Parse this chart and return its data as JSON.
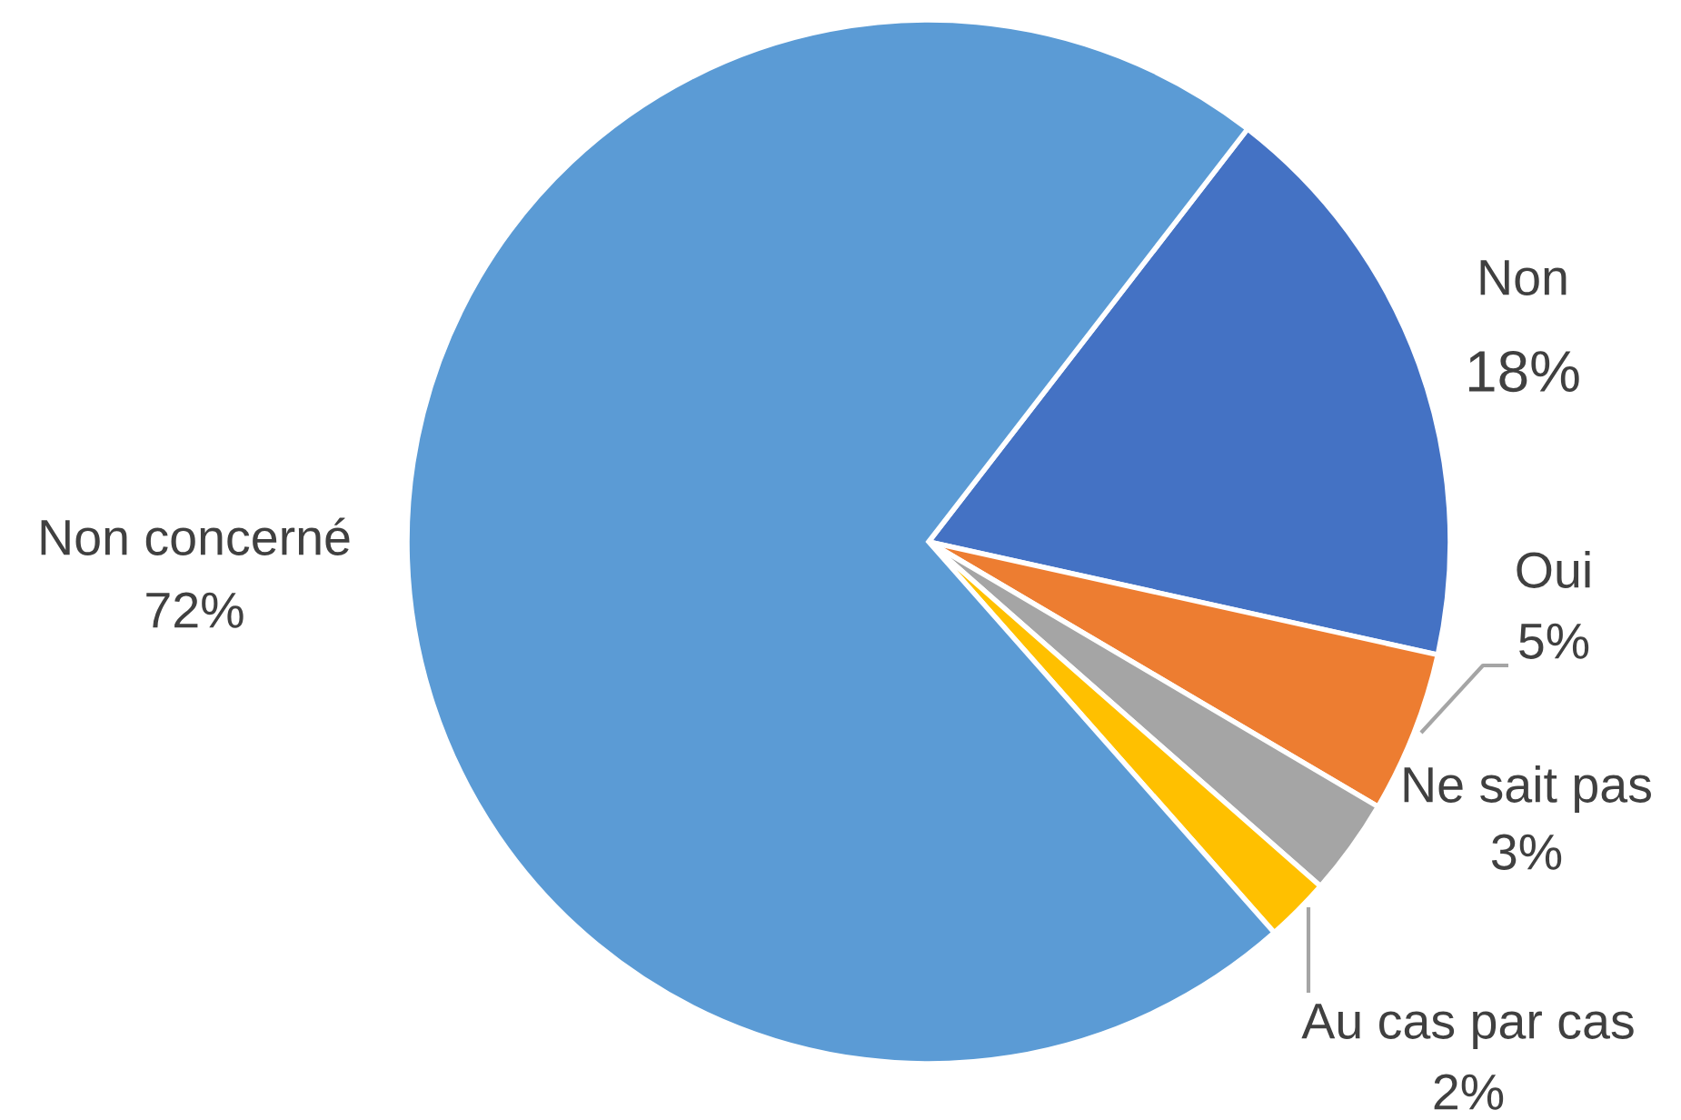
{
  "chart_data": {
    "type": "pie",
    "categories": [
      "Non",
      "Oui",
      "Ne sait pas",
      "Au cas par cas",
      "Non concerné"
    ],
    "values": [
      18,
      5,
      3,
      2,
      72
    ],
    "colors": [
      "#4472c4",
      "#ed7d31",
      "#a5a5a5",
      "#ffc000",
      "#5b9bd5"
    ],
    "value_labels": [
      "18%",
      "5%",
      "3%",
      "2%",
      "72%"
    ],
    "legend": false
  }
}
